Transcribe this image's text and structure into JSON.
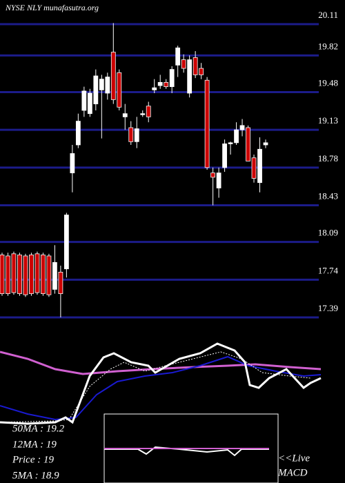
{
  "chart_data": {
    "type": "candlestick",
    "title": "NYSE NLY munafasutra.org",
    "open": [
      17.97,
      17.96,
      17.98,
      17.97,
      17.96,
      17.97,
      17.98,
      17.97,
      17.96,
      17.65,
      17.81,
      17.84,
      18.73,
      18.99,
      19.31,
      19.28,
      19.37,
      19.5,
      19.47,
      19.85,
      19.66,
      19.25,
      19.15,
      19.02,
      19.27,
      19.35,
      19.5,
      19.54,
      19.57,
      19.53,
      19.73,
      19.78,
      19.47,
      19.8,
      19.7,
      19.59,
      18.73,
      18.59,
      18.78,
      19.0,
      19.01,
      19.13,
      19.15,
      18.87,
      18.64,
      18.99
    ],
    "high": [
      17.99,
      17.99,
      18.0,
      17.99,
      17.98,
      17.99,
      18.0,
      17.99,
      17.98,
      18.06,
      17.87,
      18.36,
      18.99,
      19.28,
      19.53,
      19.51,
      19.69,
      19.64,
      19.66,
      20.12,
      19.69,
      19.37,
      19.21,
      19.25,
      19.31,
      19.39,
      19.6,
      19.64,
      19.6,
      19.72,
      19.91,
      19.83,
      19.82,
      19.86,
      19.75,
      19.62,
      18.78,
      18.78,
      19.04,
      19.02,
      19.2,
      19.23,
      19.17,
      18.9,
      19.06,
      19.04
    ],
    "low": [
      17.59,
      17.59,
      17.6,
      17.59,
      17.58,
      17.59,
      17.6,
      17.59,
      17.58,
      17.61,
      17.39,
      17.76,
      18.55,
      18.96,
      19.25,
      19.25,
      19.31,
      19.05,
      19.41,
      19.37,
      19.31,
      19.13,
      18.99,
      18.96,
      19.25,
      19.2,
      19.47,
      19.51,
      19.51,
      19.47,
      19.62,
      19.66,
      19.43,
      19.61,
      19.6,
      18.76,
      18.43,
      18.5,
      18.74,
      18.9,
      18.99,
      19.07,
      18.84,
      18.64,
      18.55,
      18.96
    ],
    "close": [
      17.61,
      17.61,
      17.62,
      17.61,
      17.6,
      17.61,
      17.62,
      17.61,
      17.6,
      17.9,
      17.61,
      18.34,
      18.91,
      19.21,
      19.49,
      19.47,
      19.63,
      19.6,
      19.62,
      19.41,
      19.34,
      19.28,
      19.02,
      19.14,
      19.28,
      19.25,
      19.52,
      19.57,
      19.53,
      19.69,
      19.89,
      19.7,
      19.78,
      19.64,
      19.64,
      18.78,
      18.69,
      18.73,
      19.0,
      19.01,
      19.13,
      19.17,
      18.84,
      18.68,
      18.95,
      19.01
    ],
    "up_color": "#ffffff",
    "down_color": "#cc0000",
    "grid_color": "#1c1c8a",
    "ylim": [
      17.39,
      20.11
    ],
    "yticks": [
      20.11,
      19.82,
      19.48,
      19.13,
      18.78,
      18.43,
      18.09,
      17.74,
      17.39
    ],
    "grid": true,
    "annotations": [
      "50MA : 19.2",
      "12MA : 19",
      "Price : 19",
      "5MA : 18.9",
      "<<Live",
      "MACD"
    ]
  }
}
